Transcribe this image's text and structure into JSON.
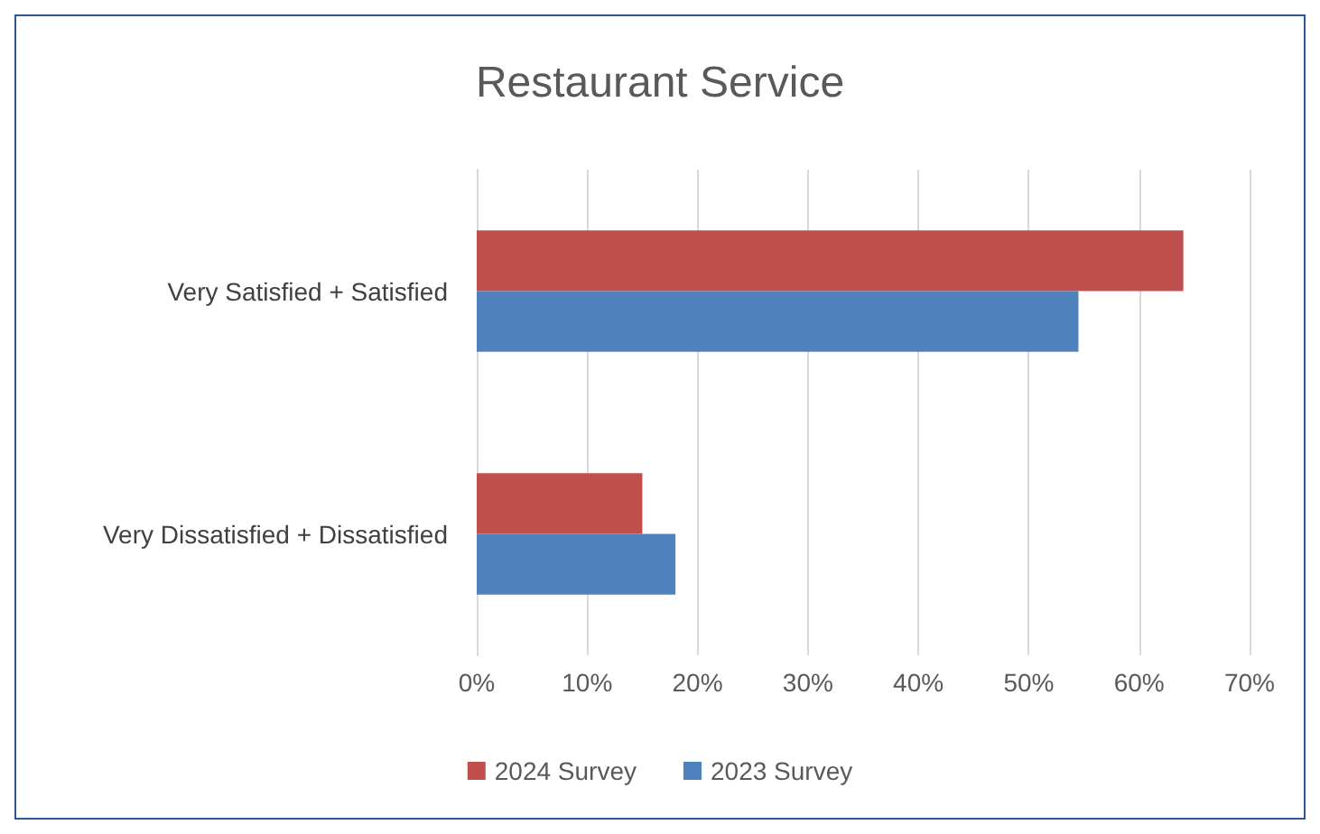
{
  "chart_data": {
    "type": "bar",
    "orientation": "horizontal",
    "title": "Restaurant Service",
    "categories": [
      "Very Satisfied + Satisfied",
      "Very Dissatisfied + Dissatisfied"
    ],
    "series": [
      {
        "name": "2024 Survey",
        "color": "#c0504d",
        "values": [
          64,
          15
        ]
      },
      {
        "name": "2023 Survey",
        "color": "#4f81bd",
        "values": [
          54.5,
          18
        ]
      }
    ],
    "xlim": [
      0,
      70
    ],
    "xticks": [
      {
        "value": 0,
        "label": "0%"
      },
      {
        "value": 10,
        "label": "10%"
      },
      {
        "value": 20,
        "label": "20%"
      },
      {
        "value": 30,
        "label": "30%"
      },
      {
        "value": 40,
        "label": "40%"
      },
      {
        "value": 50,
        "label": "50%"
      },
      {
        "value": 60,
        "label": "60%"
      },
      {
        "value": 70,
        "label": "70%"
      }
    ],
    "grid": "x",
    "legend": "bottom"
  }
}
